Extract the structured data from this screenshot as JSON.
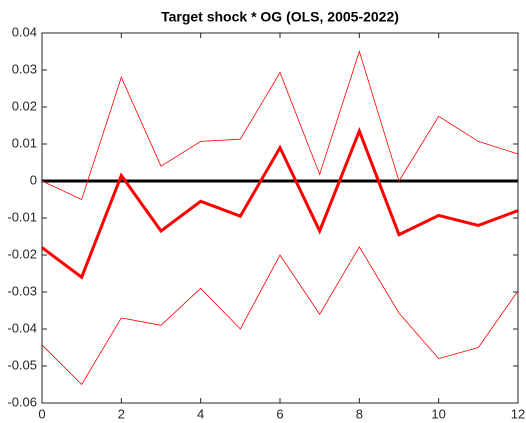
{
  "chart_data": {
    "type": "line",
    "title": "Target shock * OG (OLS, 2005-2022)",
    "x": [
      0,
      1,
      2,
      3,
      4,
      5,
      6,
      7,
      8,
      9,
      10,
      11,
      12
    ],
    "series": [
      {
        "color": "#ff0000",
        "line_width": 0.8,
        "values": [
          0.0,
          -0.005,
          0.028,
          0.004,
          0.0107,
          0.0113,
          0.0293,
          0.0018,
          0.035,
          0.0,
          0.0175,
          0.0107,
          0.0073
        ]
      },
      {
        "color": "#ff0000",
        "line_width": 3,
        "values": [
          -0.018,
          -0.026,
          0.0015,
          -0.0135,
          -0.0055,
          -0.0095,
          0.009,
          -0.0135,
          0.0135,
          -0.0145,
          -0.0093,
          -0.012,
          -0.008
        ]
      },
      {
        "color": "#ff0000",
        "line_width": 0.8,
        "values": [
          -0.0443,
          -0.055,
          -0.037,
          -0.039,
          -0.029,
          -0.04,
          -0.02,
          -0.036,
          -0.0178,
          -0.0357,
          -0.048,
          -0.045,
          -0.0297
        ]
      }
    ],
    "xlim": [
      0,
      12
    ],
    "xticks": [
      0,
      2,
      4,
      6,
      8,
      10,
      12
    ],
    "ylim": [
      -0.06,
      0.04
    ],
    "yticks": [
      -0.06,
      -0.05,
      -0.04,
      -0.03,
      -0.02,
      -0.01,
      0,
      0.01,
      0.02,
      0.03,
      0.04
    ],
    "zero_line": true,
    "grid": false
  }
}
